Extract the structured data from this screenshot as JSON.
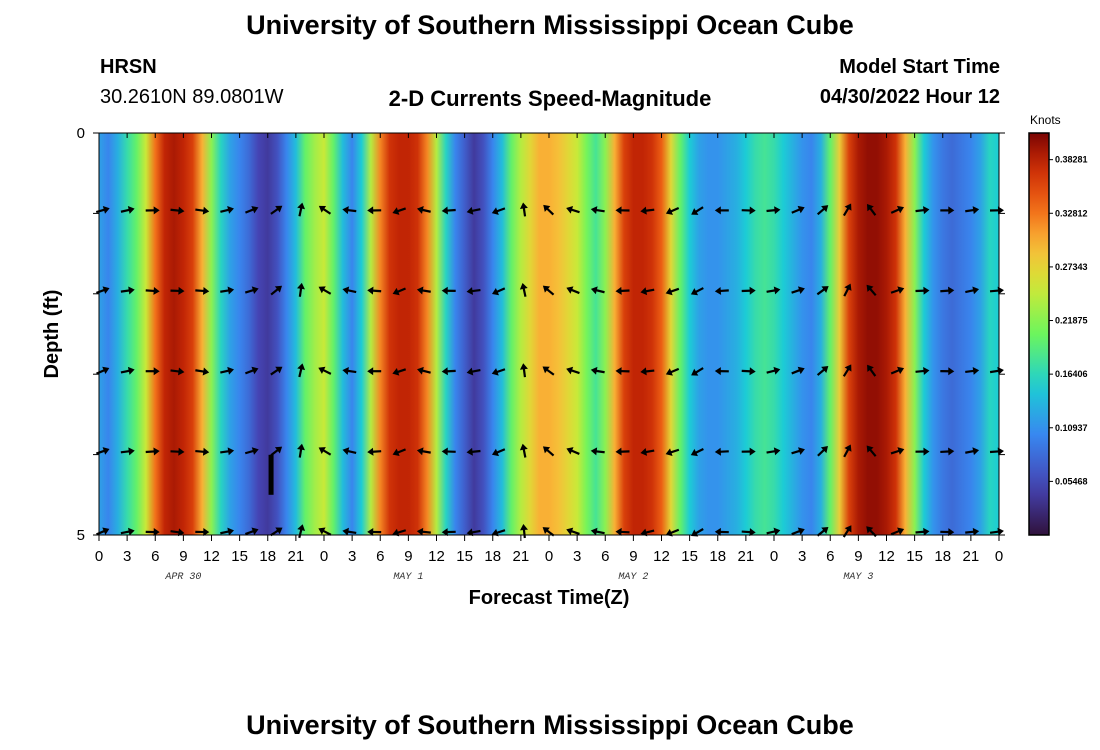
{
  "header": {
    "title": "University of Southern Mississippi Ocean Cube",
    "station": "HRSN",
    "coords": "30.2610N  89.0801W",
    "chart_title": "2-D Currents Speed-Magnitude",
    "start_label": "Model Start Time",
    "start_value": "04/30/2022 Hour 12",
    "footer_title": "University of Southern Mississippi Ocean Cube"
  },
  "chart_data": {
    "type": "heatmap",
    "title": "2-D Currents Speed-Magnitude",
    "xlabel": "Forecast Time(Z)",
    "ylabel": "Depth (ft)",
    "colorbar_label": "Knots",
    "x_tick_labels": [
      "0",
      "3",
      "6",
      "9",
      "12",
      "15",
      "18",
      "21",
      "0",
      "3",
      "6",
      "9",
      "12",
      "15",
      "18",
      "21",
      "0",
      "3",
      "6",
      "9",
      "12",
      "15",
      "18",
      "21",
      "0",
      "3",
      "6",
      "9",
      "12",
      "15",
      "18",
      "21",
      "0"
    ],
    "day_labels": [
      {
        "label": "APR 30",
        "hour_index": 7
      },
      {
        "label": "MAY 1",
        "hour_index": 15
      },
      {
        "label": "MAY 2",
        "hour_index": 23
      },
      {
        "label": "MAY 3",
        "hour_index": 31
      }
    ],
    "y_ticks": [
      "0",
      "5"
    ],
    "ylim": [
      0,
      5
    ],
    "clim": [
      0.0,
      0.41
    ],
    "colorbar_ticks": [
      "0.38281",
      "0.32812",
      "0.27343",
      "0.21875",
      "0.16406",
      "0.10937",
      "0.05468"
    ],
    "colorbar_tick_values": [
      0.38281,
      0.32812,
      0.27343,
      0.21875,
      0.16406,
      0.10937,
      0.05468
    ],
    "speed_by_hour": [
      0.12,
      0.1,
      0.13,
      0.17,
      0.2,
      0.25,
      0.33,
      0.38,
      0.39,
      0.38,
      0.36,
      0.3,
      0.22,
      0.16,
      0.12,
      0.1,
      0.08,
      0.05,
      0.04,
      0.06,
      0.1,
      0.14,
      0.2,
      0.23,
      0.25,
      0.2,
      0.14,
      0.1,
      0.15,
      0.24,
      0.32,
      0.37,
      0.38,
      0.38,
      0.37,
      0.32,
      0.24,
      0.16,
      0.1,
      0.07,
      0.04,
      0.06,
      0.1,
      0.14,
      0.2,
      0.24,
      0.27,
      0.3,
      0.3,
      0.29,
      0.27,
      0.25,
      0.21,
      0.18,
      0.22,
      0.3,
      0.36,
      0.38,
      0.38,
      0.37,
      0.34,
      0.27,
      0.2,
      0.15,
      0.12,
      0.11,
      0.11,
      0.12,
      0.13,
      0.15,
      0.17,
      0.18,
      0.17,
      0.15,
      0.13,
      0.11,
      0.1,
      0.13,
      0.2,
      0.28,
      0.36,
      0.39,
      0.4,
      0.4,
      0.39,
      0.37,
      0.3,
      0.22,
      0.15,
      0.11,
      0.09,
      0.08,
      0.09,
      0.1,
      0.12,
      0.16,
      0.15
    ],
    "arrow_rows_depth_ft": [
      1,
      2,
      3,
      4,
      5
    ],
    "arrow_angles_deg": [
      20,
      10,
      0,
      -5,
      -5,
      10,
      20,
      35,
      80,
      150,
      170,
      180,
      200,
      170,
      180,
      190,
      200,
      100,
      140,
      160,
      170,
      180,
      190,
      200,
      210,
      180,
      0,
      10,
      20,
      40,
      60,
      130,
      20,
      5,
      0,
      10,
      5
    ],
    "anomaly": {
      "hour": 18.3,
      "depth_ft": 4.5
    }
  }
}
